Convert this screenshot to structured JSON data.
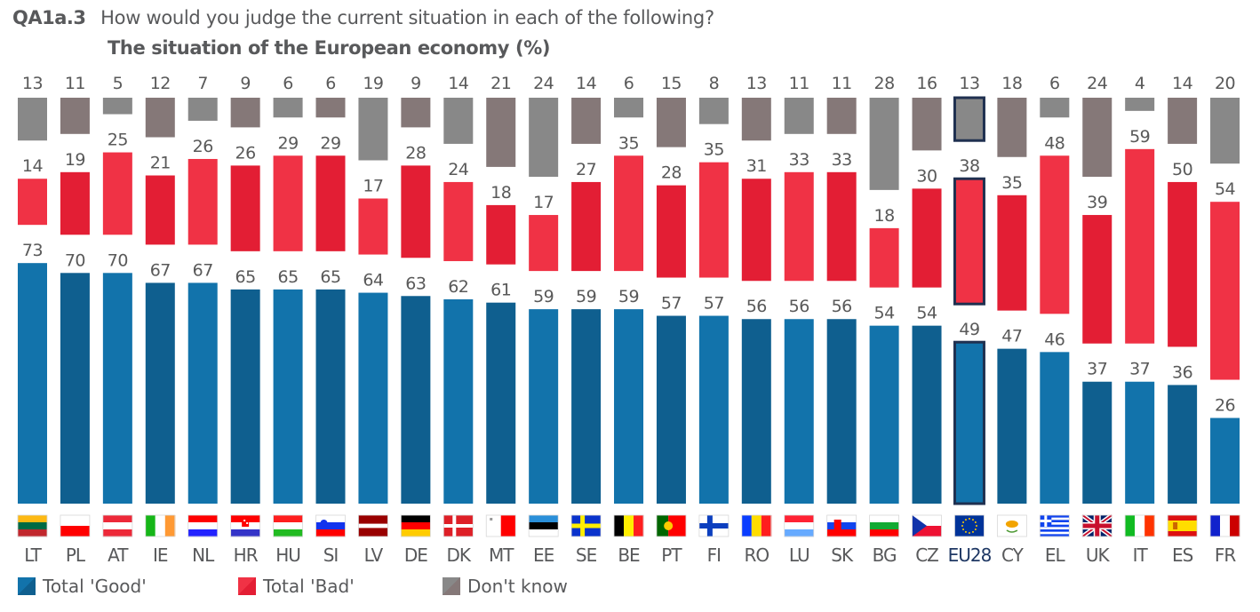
{
  "header": {
    "question_code": "QA1a.3",
    "question_text": "How would you judge the current situation in each of the following?",
    "subtitle": "The situation of the European economy  (%)"
  },
  "legend": [
    {
      "key": "good",
      "label": "Total 'Good'",
      "color": "#1273ab"
    },
    {
      "key": "bad",
      "label": "Total 'Bad'",
      "color": "#ef3042"
    },
    {
      "key": "dk",
      "label": "Don't know",
      "color": "#888888"
    }
  ],
  "colors": {
    "good_light": "#1273ab",
    "good_dark": "#0f5f8f",
    "bad_light": "#f03245",
    "bad_dark": "#e31e34",
    "dk_light": "#888888",
    "dk_dark": "#857878",
    "highlight_border": "#1f3050",
    "eu_label": "#1f3864"
  },
  "chart_data": {
    "type": "bar",
    "title": "The situation of the European economy (%)",
    "xlabel": "",
    "ylabel": "%",
    "ylim": [
      0,
      100
    ],
    "highlight": "EU28",
    "legend_position": "bottom-left",
    "categories": [
      "LT",
      "PL",
      "AT",
      "IE",
      "NL",
      "HR",
      "HU",
      "SI",
      "LV",
      "DE",
      "DK",
      "MT",
      "EE",
      "SE",
      "BE",
      "PT",
      "FI",
      "RO",
      "LU",
      "SK",
      "BG",
      "CZ",
      "EU28",
      "CY",
      "EL",
      "UK",
      "IT",
      "ES",
      "FR"
    ],
    "flags": [
      "lithuania-flag",
      "poland-flag",
      "austria-flag",
      "ireland-flag",
      "netherlands-flag",
      "croatia-flag",
      "hungary-flag",
      "slovenia-flag",
      "latvia-flag",
      "germany-flag",
      "denmark-flag",
      "malta-flag",
      "estonia-flag",
      "sweden-flag",
      "belgium-flag",
      "portugal-flag",
      "finland-flag",
      "romania-flag",
      "luxembourg-flag",
      "slovakia-flag",
      "bulgaria-flag",
      "czechia-flag",
      "eu-flag",
      "cyprus-flag",
      "greece-flag",
      "uk-flag",
      "italy-flag",
      "spain-flag",
      "france-flag"
    ],
    "series": [
      {
        "name": "Total 'Good'",
        "values": [
          73,
          70,
          70,
          67,
          67,
          65,
          65,
          65,
          64,
          63,
          62,
          61,
          59,
          59,
          59,
          57,
          57,
          56,
          56,
          56,
          54,
          54,
          49,
          47,
          46,
          37,
          37,
          36,
          26
        ]
      },
      {
        "name": "Total 'Bad'",
        "values": [
          14,
          19,
          25,
          21,
          26,
          26,
          29,
          29,
          17,
          28,
          24,
          18,
          17,
          27,
          35,
          28,
          35,
          31,
          33,
          33,
          18,
          30,
          38,
          35,
          48,
          39,
          59,
          50,
          54
        ]
      },
      {
        "name": "Don't know",
        "values": [
          13,
          11,
          5,
          12,
          7,
          9,
          6,
          6,
          19,
          9,
          14,
          21,
          24,
          14,
          6,
          15,
          8,
          13,
          11,
          11,
          28,
          16,
          13,
          18,
          6,
          24,
          4,
          14,
          20
        ]
      }
    ]
  }
}
